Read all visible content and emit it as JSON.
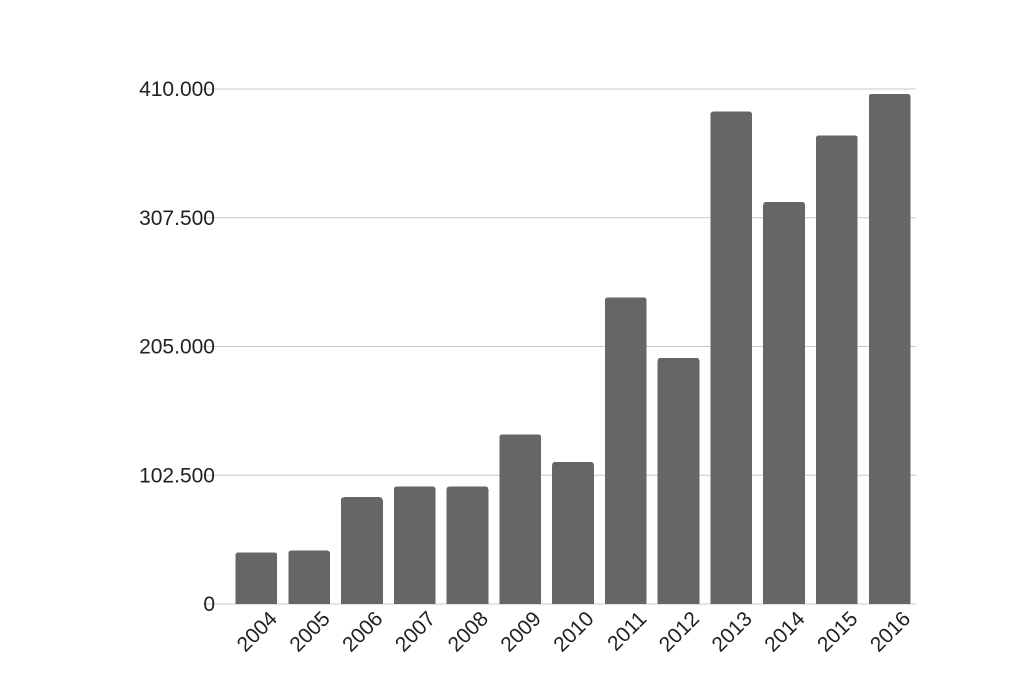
{
  "chart_data": {
    "type": "bar",
    "title": "",
    "xlabel": "",
    "ylabel": "",
    "categories": [
      "2004",
      "2005",
      "2006",
      "2007",
      "2008",
      "2009",
      "2010",
      "2011",
      "2012",
      "2013",
      "2014",
      "2015",
      "2016"
    ],
    "values": [
      41000,
      42500,
      85000,
      93500,
      93500,
      135000,
      113000,
      244000,
      196000,
      392000,
      320000,
      373000,
      406000
    ],
    "ylim": [
      0,
      410000
    ],
    "yticks": [
      0,
      102500,
      205000,
      307500,
      410000
    ],
    "ytick_labels": [
      "0",
      "102.500",
      "205.000",
      "307.500",
      "410.000"
    ],
    "bar_color": "#666666",
    "grid": true,
    "legend": "none"
  }
}
